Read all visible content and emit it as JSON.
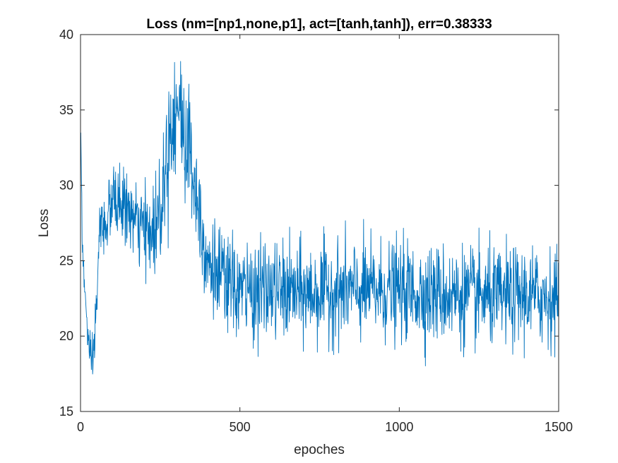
{
  "chart_data": {
    "type": "line",
    "title": "Loss (nm=[np1,none,p1], act=[tanh,tanh]), err=0.38333",
    "xlabel": "epoches",
    "ylabel": "Loss",
    "xlim": [
      0,
      1500
    ],
    "ylim": [
      15,
      40
    ],
    "xticks": [
      0,
      500,
      1000,
      1500
    ],
    "yticks": [
      15,
      20,
      25,
      30,
      35,
      40
    ],
    "xtick_labels": [
      "0",
      "500",
      "1000",
      "1500"
    ],
    "ytick_labels": [
      "15",
      "20",
      "25",
      "30",
      "35",
      "40"
    ],
    "grid": false,
    "legend": "none",
    "colors": {
      "series": "#0072BD",
      "axes": "#262626",
      "background": "#ffffff"
    },
    "series_envelope": {
      "x": [
        1,
        5,
        10,
        20,
        30,
        40,
        50,
        60,
        80,
        100,
        125,
        150,
        175,
        200,
        225,
        250,
        275,
        300,
        325,
        350,
        375,
        400,
        450,
        500,
        600,
        700,
        800,
        900,
        1000,
        1100,
        1200,
        1300,
        1400,
        1500
      ],
      "y": [
        33.5,
        27,
        24,
        21,
        18,
        18.5,
        22,
        27,
        27.5,
        29,
        28.8,
        28.3,
        27.5,
        27,
        26.8,
        28.5,
        33,
        35.5,
        33.5,
        31.5,
        28,
        25,
        23.5,
        23,
        23,
        22.8,
        23,
        23,
        23,
        22.8,
        22.7,
        22.5,
        22.7,
        22.5
      ]
    },
    "noise_amplitude": {
      "x": [
        0,
        50,
        200,
        275,
        350,
        400,
        500,
        1500
      ],
      "y": [
        0.5,
        1.0,
        1.3,
        2.2,
        2.2,
        1.7,
        1.6,
        1.6
      ]
    }
  }
}
